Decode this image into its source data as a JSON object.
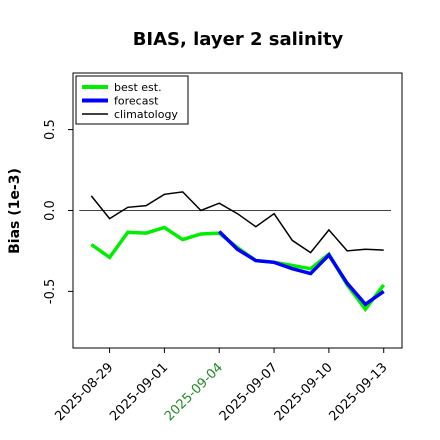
{
  "chart_data": {
    "type": "line",
    "title": "BIAS, layer 2 salinity",
    "ylabel": "Bias (1e-3)",
    "xlabel": "",
    "ylim": [
      -0.85,
      0.85
    ],
    "xlim": [
      "2025-08-27",
      "2025-09-14"
    ],
    "yticks": [
      -0.5,
      0.0,
      0.5
    ],
    "ytick_labels": [
      "-0.5",
      "0.0",
      "0.5"
    ],
    "xticks": [
      "2025-08-29",
      "2025-09-01",
      "2025-09-04",
      "2025-09-07",
      "2025-09-10",
      "2025-09-13"
    ],
    "highlight_tick": "2025-09-04",
    "highlight_color": "#228B22",
    "zero_line": true,
    "legend_position": "upper left",
    "series": [
      {
        "name": "best est.",
        "color": "#00ee00",
        "x": [
          "2025-08-28",
          "2025-08-29",
          "2025-08-30",
          "2025-08-31",
          "2025-09-01",
          "2025-09-02",
          "2025-09-03",
          "2025-09-04",
          "2025-09-05",
          "2025-09-06",
          "2025-09-07",
          "2025-09-08",
          "2025-09-09",
          "2025-09-10",
          "2025-09-11",
          "2025-09-12",
          "2025-09-13"
        ],
        "values": [
          -0.21,
          -0.29,
          -0.135,
          -0.14,
          -0.105,
          -0.18,
          -0.145,
          -0.14,
          -0.23,
          -0.31,
          -0.32,
          -0.34,
          -0.36,
          -0.27,
          -0.46,
          -0.61,
          -0.46
        ]
      },
      {
        "name": "forecast",
        "color": "#0000ff",
        "x": [
          "2025-09-04",
          "2025-09-05",
          "2025-09-06",
          "2025-09-07",
          "2025-09-08",
          "2025-09-09",
          "2025-09-10",
          "2025-09-11",
          "2025-09-12",
          "2025-09-13"
        ],
        "values": [
          -0.13,
          -0.24,
          -0.31,
          -0.32,
          -0.36,
          -0.39,
          -0.275,
          -0.45,
          -0.58,
          -0.5
        ]
      },
      {
        "name": "climatology",
        "color": "#000000",
        "x": [
          "2025-08-28",
          "2025-08-29",
          "2025-08-30",
          "2025-08-31",
          "2025-09-01",
          "2025-09-02",
          "2025-09-03",
          "2025-09-04",
          "2025-09-05",
          "2025-09-06",
          "2025-09-07",
          "2025-09-08",
          "2025-09-09",
          "2025-09-10",
          "2025-09-11",
          "2025-09-12",
          "2025-09-13"
        ],
        "values": [
          0.09,
          -0.05,
          0.02,
          0.03,
          0.1,
          0.115,
          0.0,
          0.045,
          -0.02,
          -0.1,
          -0.02,
          -0.185,
          -0.26,
          -0.12,
          -0.25,
          -0.24,
          -0.245
        ]
      }
    ]
  }
}
